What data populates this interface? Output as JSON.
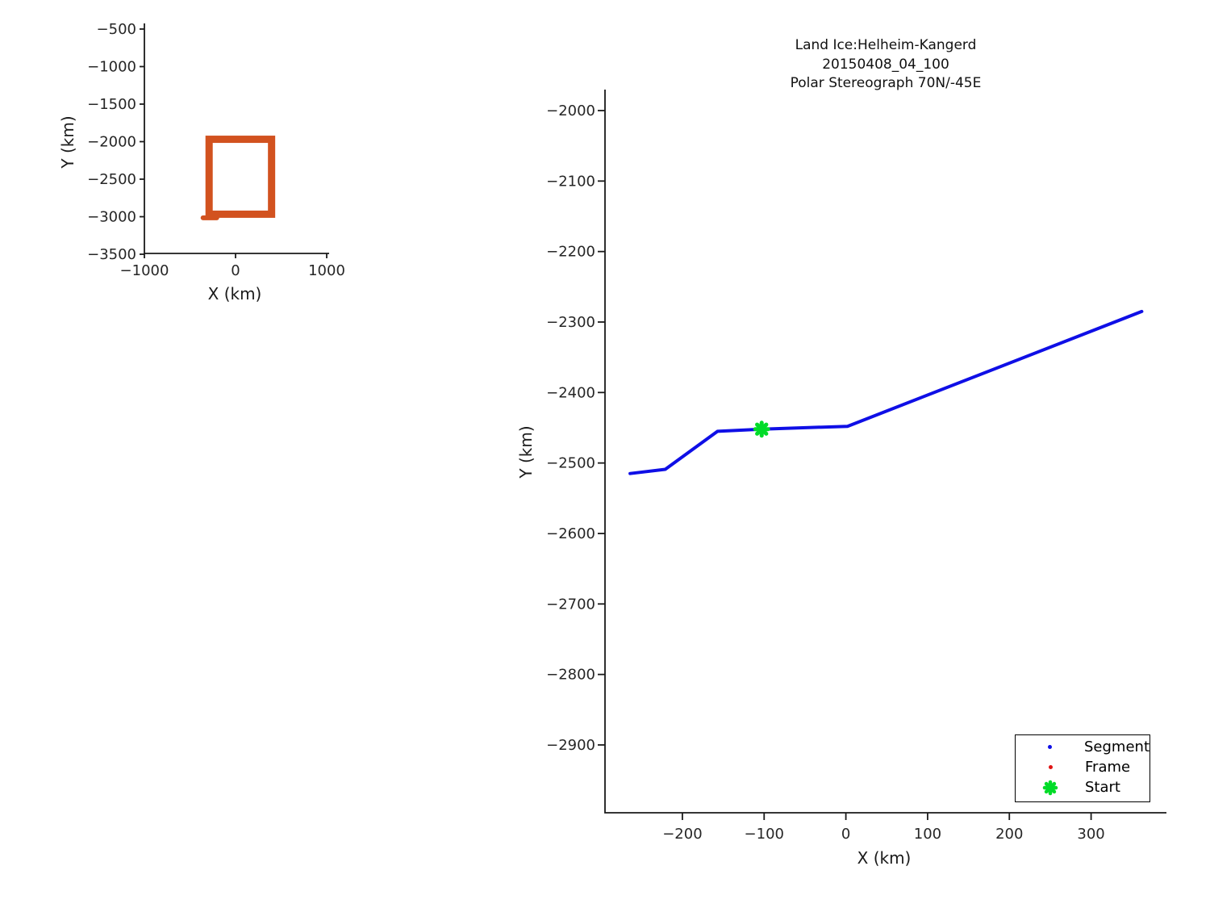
{
  "figure": {
    "background": "#ffffff",
    "axis_color": "#1a1a1a",
    "tick_text_color": "#262626"
  },
  "chart_data": [
    {
      "id": "overview",
      "type": "line",
      "title": "",
      "xlabel": "X (km)",
      "ylabel": "Y (km)",
      "x_ticks": [
        -1000,
        0,
        1000
      ],
      "y_ticks": [
        -500,
        -1000,
        -1500,
        -2000,
        -2500,
        -3000,
        -3500
      ],
      "xlim": [
        -1000,
        1030
      ],
      "ylim": [
        -3500,
        -435
      ],
      "grid": false,
      "series": [
        {
          "name": "coverage-footprint",
          "shape": "rectangle-outline",
          "color": "#d2521f",
          "linewidth": 9,
          "x_range": [
            -330,
            435
          ],
          "y_range": [
            -3015,
            -1920
          ]
        }
      ]
    },
    {
      "id": "main",
      "type": "line",
      "title_lines": [
        "Land Ice:Helheim-Kangerd",
        "20150408_04_100",
        "Polar Stereograph 70N/-45E"
      ],
      "xlabel": "X (km)",
      "ylabel": "Y (km)",
      "x_ticks": [
        -200,
        -100,
        0,
        100,
        200,
        300
      ],
      "y_ticks": [
        -2000,
        -2100,
        -2200,
        -2300,
        -2400,
        -2500,
        -2600,
        -2700,
        -2800,
        -2900
      ],
      "xlim": [
        -294,
        393
      ],
      "ylim": [
        -3000,
        -1970
      ],
      "grid": false,
      "legend_position": "bottom-right",
      "series": [
        {
          "name": "Segment",
          "color": "#0f0fe6",
          "marker": "dot",
          "linewidth": 4,
          "points": [
            [
              -264,
              -2515
            ],
            [
              -221,
              -2509
            ],
            [
              -157,
              -2455
            ],
            [
              -103,
              -2452
            ],
            [
              2,
              -2448
            ],
            [
              362,
              -2285
            ]
          ]
        },
        {
          "name": "Frame",
          "color": "#e01414",
          "marker": "dot",
          "points": []
        },
        {
          "name": "Start",
          "color": "#00dc28",
          "marker": "asterisk",
          "points": [
            [
              -103,
              -2452
            ]
          ]
        }
      ],
      "legend": [
        "Segment",
        "Frame",
        "Start"
      ]
    }
  ]
}
